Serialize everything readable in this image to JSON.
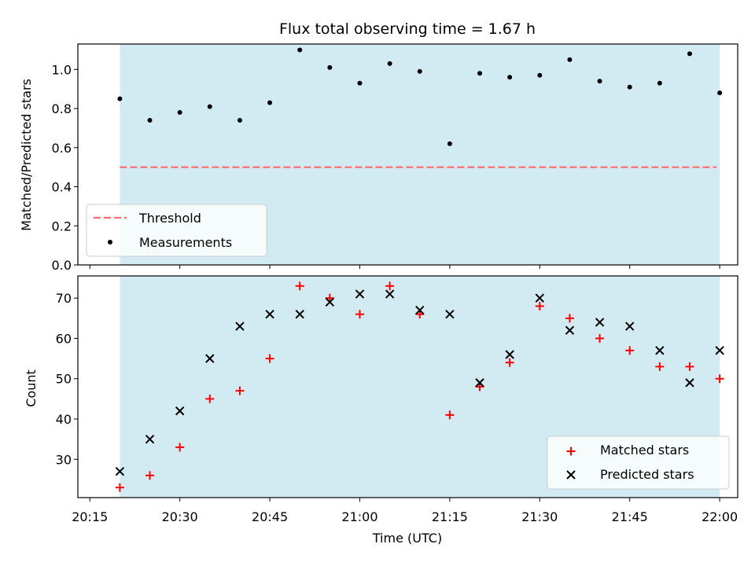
{
  "chart_data": [
    {
      "type": "scatter",
      "title": "Flux total observing time = 1.67 h",
      "xlabel": "",
      "ylabel": "Matched/Predicted stars",
      "ylim": [
        0,
        1.13
      ],
      "yticks": [
        "0.0",
        "0.2",
        "0.4",
        "0.6",
        "0.8",
        "1.0"
      ],
      "xlim": [
        "20:13",
        "22:03"
      ],
      "shaded_span": [
        "20:20",
        "22:00"
      ],
      "shade_color": "#add8e6",
      "threshold": {
        "name": "Threshold",
        "value": 0.5,
        "color": "#ff6b6b"
      },
      "series": [
        {
          "name": "Measurements",
          "color": "#000000",
          "x": [
            "20:20",
            "20:25",
            "20:30",
            "20:35",
            "20:40",
            "20:45",
            "20:50",
            "20:55",
            "21:00",
            "21:05",
            "21:10",
            "21:15",
            "21:20",
            "21:25",
            "21:30",
            "21:35",
            "21:40",
            "21:45",
            "21:50",
            "21:55",
            "22:00"
          ],
          "y": [
            0.85,
            0.74,
            0.78,
            0.81,
            0.74,
            0.83,
            1.1,
            1.01,
            0.93,
            1.03,
            0.99,
            0.62,
            0.98,
            0.96,
            0.97,
            1.05,
            0.94,
            0.91,
            0.93,
            1.08,
            0.88
          ]
        }
      ],
      "legend": {
        "position": "lower left",
        "entries": [
          "Threshold",
          "Measurements"
        ]
      }
    },
    {
      "type": "scatter",
      "xlabel": "Time (UTC)",
      "ylabel": "Count",
      "ylim": [
        20.5,
        75.5
      ],
      "yticks": [
        "30",
        "40",
        "50",
        "60",
        "70"
      ],
      "xlim": [
        "20:13",
        "22:03"
      ],
      "xticks": [
        "20:15",
        "20:30",
        "20:45",
        "21:00",
        "21:15",
        "21:30",
        "21:45",
        "22:00"
      ],
      "shaded_span": [
        "20:20",
        "22:00"
      ],
      "shade_color": "#add8e6",
      "series": [
        {
          "name": "Matched stars",
          "marker": "plus",
          "color": "#ff0000",
          "x": [
            "20:20",
            "20:25",
            "20:30",
            "20:35",
            "20:40",
            "20:45",
            "20:50",
            "20:55",
            "21:00",
            "21:05",
            "21:10",
            "21:15",
            "21:20",
            "21:25",
            "21:30",
            "21:35",
            "21:40",
            "21:45",
            "21:50",
            "21:55",
            "22:00"
          ],
          "y": [
            23,
            26,
            33,
            45,
            47,
            55,
            73,
            70,
            66,
            73,
            66,
            41,
            48,
            54,
            68,
            65,
            60,
            57,
            53,
            53,
            50
          ]
        },
        {
          "name": "Predicted stars",
          "marker": "x",
          "color": "#000000",
          "x": [
            "20:20",
            "20:25",
            "20:30",
            "20:35",
            "20:40",
            "20:45",
            "20:50",
            "20:55",
            "21:00",
            "21:05",
            "21:10",
            "21:15",
            "21:20",
            "21:25",
            "21:30",
            "21:35",
            "21:40",
            "21:45",
            "21:50",
            "21:55",
            "22:00"
          ],
          "y": [
            27,
            35,
            42,
            55,
            63,
            66,
            66,
            69,
            71,
            71,
            67,
            66,
            49,
            56,
            70,
            62,
            64,
            63,
            57,
            49,
            57
          ]
        }
      ],
      "legend": {
        "position": "lower right",
        "entries": [
          "Matched stars",
          "Predicted stars"
        ]
      }
    }
  ]
}
